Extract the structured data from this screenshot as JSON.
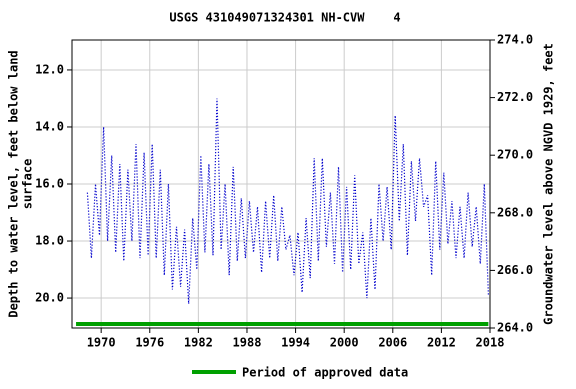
{
  "chart_data": {
    "type": "line",
    "title": "USGS 431049071324301 NH-CVW    4",
    "ylabel": [
      "Depth to water level, feet below land",
      "surface"
    ],
    "y2label": "Groundwater level above NGVD 1929, feet",
    "xlim": [
      1966.4,
      2018
    ],
    "xticks": [
      1970,
      1976,
      1982,
      1988,
      1994,
      2000,
      2006,
      2012,
      2018
    ],
    "ylim": [
      10.95,
      21.05
    ],
    "y_inverted": true,
    "yticks": [
      {
        "value": 12,
        "label": "12.0"
      },
      {
        "value": 14,
        "label": "14.0"
      },
      {
        "value": 16,
        "label": "16.0"
      },
      {
        "value": 18,
        "label": "18.0"
      },
      {
        "value": 20,
        "label": "20.0"
      }
    ],
    "y2lim": [
      264,
      274
    ],
    "y2ticks": [
      {
        "value": 264,
        "label": "264.0"
      },
      {
        "value": 266,
        "label": "266.0"
      },
      {
        "value": 268,
        "label": "268.0"
      },
      {
        "value": 270,
        "label": "270.0"
      },
      {
        "value": 272,
        "label": "272.0"
      },
      {
        "value": 274,
        "label": "274.0"
      }
    ],
    "grid": true,
    "series": [
      {
        "color": "#0000cc",
        "x": [
          1968.3,
          1968.8,
          1969.3,
          1969.8,
          1970.3,
          1970.8,
          1971.3,
          1971.8,
          1972.3,
          1972.8,
          1973.3,
          1973.8,
          1974.3,
          1974.8,
          1975.3,
          1975.8,
          1976.3,
          1976.8,
          1977.3,
          1977.8,
          1978.3,
          1978.8,
          1979.3,
          1979.8,
          1980.3,
          1980.8,
          1981.3,
          1981.8,
          1982.3,
          1982.8,
          1983.3,
          1983.8,
          1984.3,
          1984.8,
          1985.3,
          1985.8,
          1986.3,
          1986.8,
          1987.3,
          1987.8,
          1988.3,
          1988.8,
          1989.3,
          1989.8,
          1990.3,
          1990.8,
          1991.3,
          1991.8,
          1992.3,
          1992.8,
          1993.3,
          1993.8,
          1994.3,
          1994.8,
          1995.3,
          1995.8,
          1996.3,
          1996.8,
          1997.3,
          1997.8,
          1998.3,
          1998.8,
          1999.3,
          1999.8,
          2000.3,
          2000.8,
          2001.3,
          2001.8,
          2002.3,
          2002.8,
          2003.3,
          2003.8,
          2004.3,
          2004.8,
          2005.3,
          2005.8,
          2006.3,
          2006.8,
          2007.3,
          2007.8,
          2008.3,
          2008.8,
          2009.3,
          2009.8,
          2010.3,
          2010.8,
          2011.3,
          2011.8,
          2012.3,
          2012.8,
          2013.3,
          2013.8,
          2014.3,
          2014.8,
          2015.3,
          2015.8,
          2016.3,
          2016.8,
          2017.3,
          2017.8
        ],
        "values": [
          16.3,
          18.6,
          16.0,
          17.8,
          14.0,
          18.0,
          15.0,
          18.4,
          15.3,
          18.7,
          15.5,
          18.0,
          14.6,
          18.6,
          14.9,
          18.5,
          14.6,
          18.6,
          15.5,
          19.2,
          16.0,
          19.7,
          17.5,
          19.6,
          17.6,
          20.2,
          17.2,
          19.0,
          15.0,
          18.4,
          15.3,
          18.5,
          13.0,
          18.3,
          16.0,
          19.2,
          15.4,
          18.7,
          16.5,
          18.6,
          16.6,
          18.4,
          16.8,
          19.1,
          16.6,
          18.6,
          16.4,
          18.7,
          16.8,
          18.3,
          17.8,
          19.2,
          17.7,
          19.8,
          17.2,
          19.3,
          15.1,
          18.7,
          15.1,
          18.2,
          16.3,
          18.8,
          15.4,
          19.1,
          16.1,
          19.0,
          15.7,
          18.8,
          17.7,
          20.0,
          17.2,
          19.7,
          16.0,
          18.0,
          16.1,
          18.3,
          13.6,
          17.3,
          14.6,
          18.5,
          15.2,
          17.3,
          15.1,
          16.8,
          16.4,
          19.2,
          15.2,
          18.3,
          15.6,
          18.1,
          16.6,
          18.6,
          16.8,
          18.6,
          16.3,
          18.2,
          16.8,
          18.8,
          16.0,
          19.9
        ]
      }
    ],
    "approved": {
      "name": "Period of approved data",
      "color": "#00a000",
      "x": [
        1966.9,
        2017.8
      ]
    }
  }
}
